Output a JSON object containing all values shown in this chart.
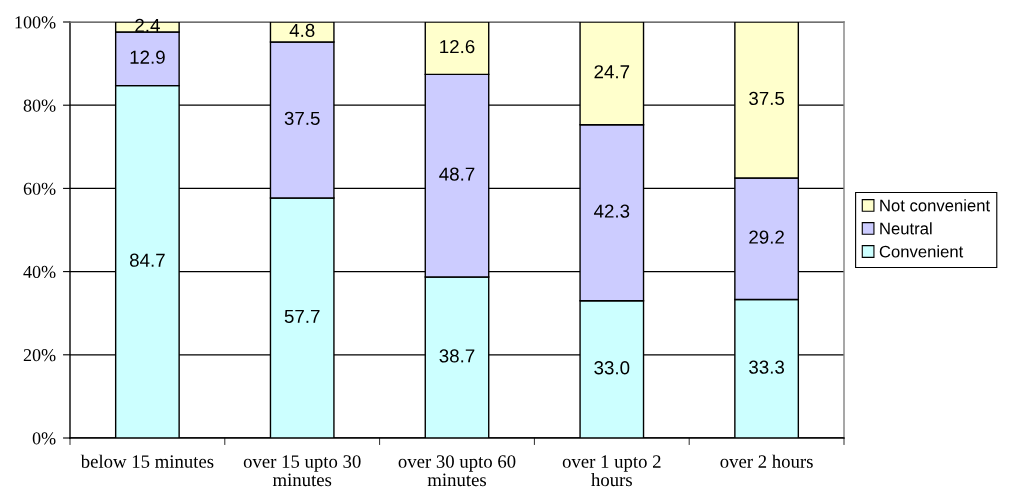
{
  "chart_data": {
    "type": "bar",
    "stacked": true,
    "categories": [
      "below 15 minutes",
      "over 15 upto 30 minutes",
      "over 30 upto 60 minutes",
      "over 1 upto 2 hours",
      "over 2 hours"
    ],
    "series": [
      {
        "name": "Convenient",
        "color": "#ccffff",
        "values": [
          84.7,
          57.7,
          38.7,
          33.0,
          33.3
        ],
        "value_labels": [
          "84.7",
          "57.7",
          "38.7",
          "33.0",
          "33.3"
        ]
      },
      {
        "name": "Neutral",
        "color": "#ccccff",
        "values": [
          12.9,
          37.5,
          48.7,
          42.3,
          29.2
        ],
        "value_labels": [
          "12.9",
          "37.5",
          "48.7",
          "42.3",
          "29.2"
        ]
      },
      {
        "name": "Not convenient",
        "color": "#ffffcc",
        "values": [
          2.4,
          4.8,
          12.6,
          24.7,
          37.5
        ],
        "value_labels": [
          "2.4",
          "4.8",
          "12.6",
          "24.7",
          "37.5"
        ]
      }
    ],
    "ylim": [
      0,
      100
    ],
    "yticks": [
      {
        "value": 0,
        "label": "0%"
      },
      {
        "value": 20,
        "label": "20%"
      },
      {
        "value": 40,
        "label": "40%"
      },
      {
        "value": 60,
        "label": "60%"
      },
      {
        "value": 80,
        "label": "80%"
      },
      {
        "value": 100,
        "label": "100%"
      }
    ],
    "grid": "y",
    "legend": "right"
  }
}
